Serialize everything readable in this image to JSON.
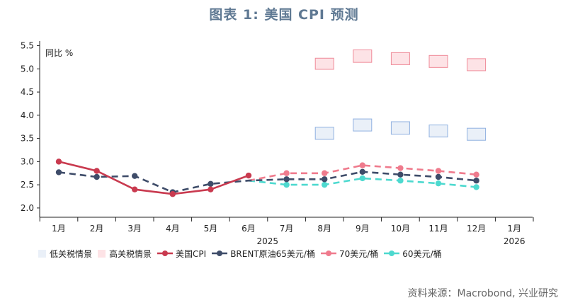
{
  "title": "图表 1:  美国 CPI 预测",
  "source": "资料来源：Macrobond, 兴业研究",
  "colors": {
    "cpi": "#c93a4f",
    "brent65": "#3e4c69",
    "oil70": "#ef7b8d",
    "oil60": "#4dd9cf",
    "low_fill": "#eaf0f8",
    "low_border": "#8fb0e0",
    "high_fill": "#fde3e6",
    "high_border": "#ef8a98",
    "axis": "#222222",
    "title": "#5f7993"
  },
  "chart_data": {
    "type": "line",
    "title": "美国 CPI 预测",
    "ylabel": "同比 %",
    "ylim": [
      1.8,
      5.6
    ],
    "yticks": [
      "2.0",
      "2.5",
      "3.0",
      "3.5",
      "4.0",
      "4.5",
      "5.0",
      "5.5"
    ],
    "ytick_values": [
      2.0,
      2.5,
      3.0,
      3.5,
      4.0,
      4.5,
      5.0,
      5.5
    ],
    "categories": [
      "1月",
      "2月",
      "3月",
      "4月",
      "5月",
      "6月",
      "7月",
      "8月",
      "9月",
      "10月",
      "11月",
      "12月",
      "1月"
    ],
    "year_labels": [
      {
        "label": "2025",
        "at_category": 5.5
      },
      {
        "label": "2026",
        "at_category": 12
      }
    ],
    "series": [
      {
        "key": "cpi",
        "name": "美国CPI",
        "style": "solid",
        "values": [
          3.0,
          2.8,
          2.4,
          2.3,
          2.4,
          2.7,
          null,
          null,
          null,
          null,
          null,
          null,
          null
        ]
      },
      {
        "key": "brent65",
        "name": "BRENT原油65美元/桶",
        "style": "dashed",
        "values": [
          2.77,
          2.67,
          2.69,
          2.34,
          2.52,
          2.59,
          2.62,
          2.62,
          2.78,
          2.72,
          2.67,
          2.59,
          null
        ]
      },
      {
        "key": "oil70",
        "name": "70美元/桶",
        "style": "dashed",
        "values": [
          null,
          null,
          null,
          null,
          null,
          2.59,
          2.75,
          2.75,
          2.92,
          2.86,
          2.8,
          2.72,
          null
        ]
      },
      {
        "key": "oil60",
        "name": "60美元/桶",
        "style": "dashed",
        "values": [
          null,
          null,
          null,
          null,
          null,
          2.59,
          2.5,
          2.5,
          2.64,
          2.59,
          2.53,
          2.45,
          null
        ]
      }
    ],
    "ranges": [
      {
        "key": "low",
        "name": "低关税情景",
        "boxes": [
          {
            "cat": 7,
            "low": 3.48,
            "high": 3.74
          },
          {
            "cat": 8,
            "low": 3.66,
            "high": 3.92
          },
          {
            "cat": 9,
            "low": 3.59,
            "high": 3.86
          },
          {
            "cat": 10,
            "low": 3.53,
            "high": 3.79
          },
          {
            "cat": 11,
            "low": 3.46,
            "high": 3.72
          }
        ]
      },
      {
        "key": "high",
        "name": "高关税情景",
        "boxes": [
          {
            "cat": 7,
            "low": 4.99,
            "high": 5.23
          },
          {
            "cat": 8,
            "low": 5.14,
            "high": 5.41
          },
          {
            "cat": 9,
            "low": 5.09,
            "high": 5.35
          },
          {
            "cat": 10,
            "low": 5.03,
            "high": 5.29
          },
          {
            "cat": 11,
            "low": 4.96,
            "high": 5.22
          }
        ]
      }
    ]
  },
  "legend": {
    "items": [
      "低关税情景",
      "高关税情景",
      "美国CPI",
      "BRENT原油65美元/桶",
      "70美元/桶",
      "60美元/桶"
    ]
  }
}
